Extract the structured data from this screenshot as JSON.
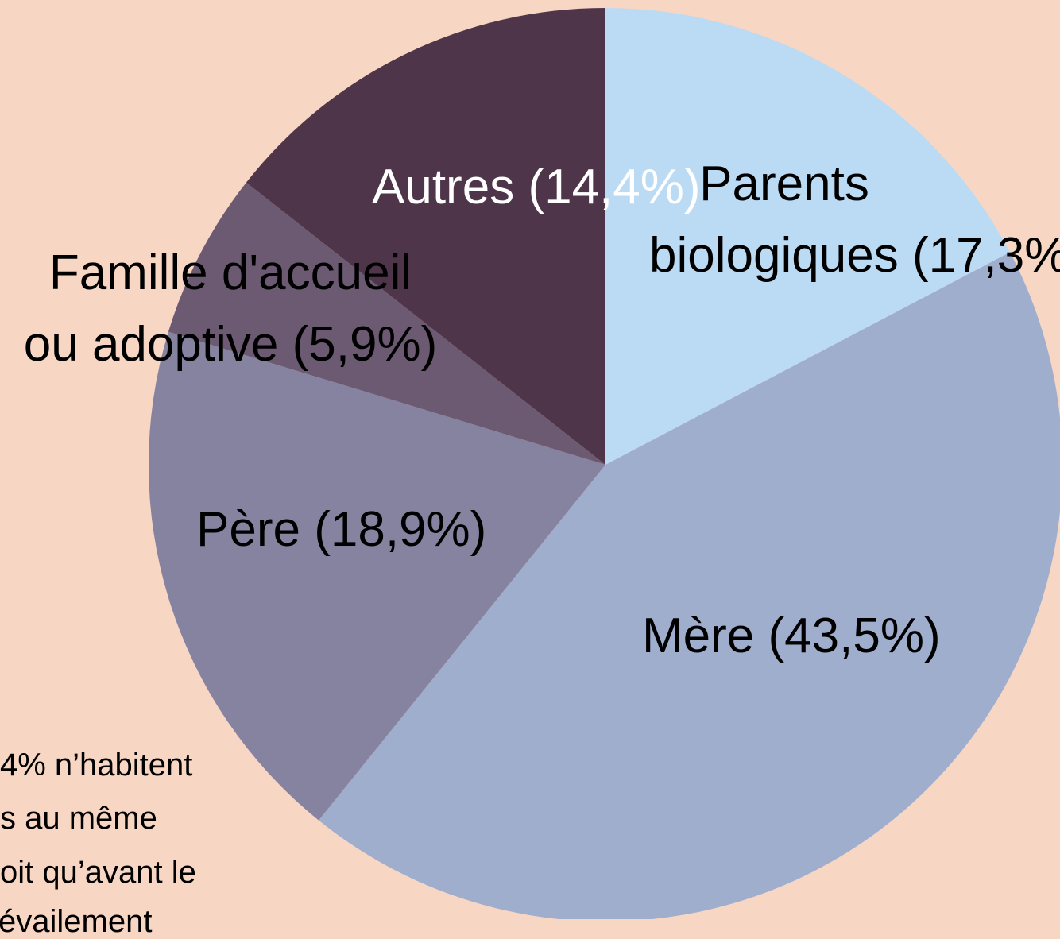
{
  "chart_data": {
    "type": "pie",
    "categories": [
      "Parents biologiques",
      "Mère",
      "Père",
      "Famille d'accueil ou adoptive",
      "Autres"
    ],
    "values": [
      17.3,
      43.5,
      18.9,
      5.9,
      14.4
    ],
    "value_labels": [
      "(17,3%)",
      "(43,5%)",
      "(18,9%)",
      "(5,9%)",
      "(14,4%)"
    ],
    "colors": [
      "#bbdaf4",
      "#a0aece",
      "#8683a1",
      "#6b5a72",
      "#4f3549"
    ],
    "label_colors": [
      "#000000",
      "#000000",
      "#000000",
      "#000000",
      "#ffffff"
    ],
    "annotation": [
      "4% n’habitent",
      "s au même",
      "oit qu’avant le",
      "évailement"
    ]
  }
}
